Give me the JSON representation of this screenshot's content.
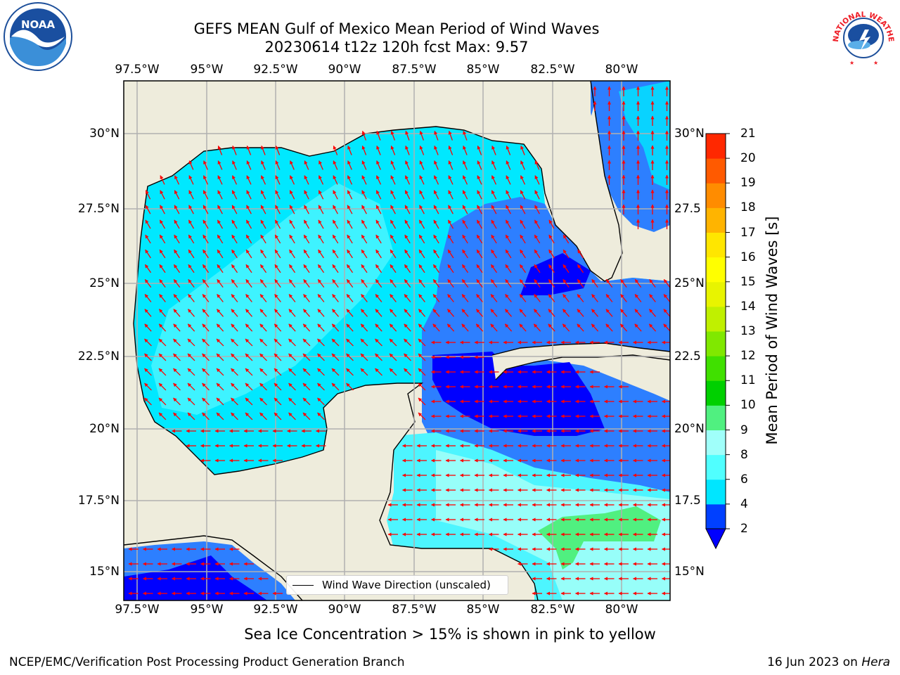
{
  "header": {
    "title_line1": "GEFS MEAN Gulf of Mexico Mean Period of Wind Waves",
    "title_line2": "20230614 t12z 120h fcst   Max: 9.57"
  },
  "logos": {
    "left": {
      "icon": "noaa-logo",
      "text": "NOAA"
    },
    "right": {
      "icon": "nws-logo",
      "text": "NATIONAL WEATHER SERVICE"
    }
  },
  "map": {
    "lon_labels": [
      "97.5°W",
      "95°W",
      "92.5°W",
      "90°W",
      "87.5°W",
      "85°W",
      "82.5°W",
      "80°W"
    ],
    "lat_labels": [
      "30°N",
      "27.5°N",
      "25°N",
      "22.5°N",
      "20°N",
      "17.5°N",
      "15°N"
    ],
    "lat_labels_right": [
      "30°N",
      "27.5",
      "25°N",
      "22.5",
      "20°N",
      "17.5",
      "15°N"
    ],
    "land_color": "#eeecdc",
    "arrow_color": "#ff0000",
    "legend_label": "Wind Wave Direction (unscaled)"
  },
  "colorbar": {
    "title": "Mean Period of Wind Waves [s]",
    "ticks": [
      "2",
      "4",
      "6",
      "8",
      "9",
      "10",
      "11",
      "12",
      "13",
      "14",
      "15",
      "16",
      "17",
      "18",
      "19",
      "20",
      "21"
    ],
    "colors": [
      "#0040ff",
      "#00e6ff",
      "#50ffff",
      "#a0fffa",
      "#50f080",
      "#00d000",
      "#40e000",
      "#80e800",
      "#c0f000",
      "#e8f400",
      "#ffff00",
      "#ffe600",
      "#ffb400",
      "#ff8c00",
      "#ff5a00",
      "#ff2800"
    ],
    "extend_color": "#0000ff"
  },
  "footer": {
    "note": "Sea Ice Concentration > 15% is shown in pink to yellow",
    "credit": "NCEP/EMC/Verification Post Processing Product Generation Branch",
    "date_prefix": "16 Jun 2023 on",
    "machine": "Hera"
  }
}
